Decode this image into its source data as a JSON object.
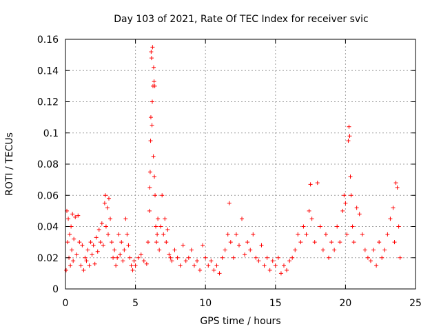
{
  "chart_data": {
    "type": "scatter",
    "title": "Day 103 of 2021, Rate Of TEC Index for receiver svic",
    "xlabel": "GPS time / hours",
    "ylabel": "ROTI / TECUs",
    "xlim": [
      0,
      25
    ],
    "ylim": [
      0,
      0.16
    ],
    "grid": true,
    "legend": "none",
    "marker": "plus",
    "marker_color": "#ff0000",
    "x_ticks": [
      0,
      5,
      10,
      15,
      20,
      25
    ],
    "x_tick_labels": [
      "0",
      "5",
      "10",
      "15",
      "20",
      "25"
    ],
    "y_ticks": [
      0,
      0.02,
      0.04,
      0.06,
      0.08,
      0.1,
      0.12,
      0.14,
      0.16
    ],
    "y_tick_labels": [
      "0",
      "0.02",
      "0.04",
      "0.06",
      "0.08",
      "0.1",
      "0.12",
      "0.14",
      "0.16"
    ],
    "points": [
      [
        0.05,
        0.012
      ],
      [
        0.1,
        0.05
      ],
      [
        0.15,
        0.03
      ],
      [
        0.2,
        0.045
      ],
      [
        0.25,
        0.02
      ],
      [
        0.3,
        0.035
      ],
      [
        0.35,
        0.015
      ],
      [
        0.4,
        0.04
      ],
      [
        0.45,
        0.025
      ],
      [
        0.5,
        0.048
      ],
      [
        0.55,
        0.018
      ],
      [
        0.6,
        0.032
      ],
      [
        0.7,
        0.046
      ],
      [
        0.8,
        0.022
      ],
      [
        0.9,
        0.047
      ],
      [
        1.0,
        0.03
      ],
      [
        1.1,
        0.015
      ],
      [
        1.2,
        0.028
      ],
      [
        1.3,
        0.012
      ],
      [
        1.4,
        0.02
      ],
      [
        1.5,
        0.018
      ],
      [
        1.6,
        0.025
      ],
      [
        1.7,
        0.015
      ],
      [
        1.8,
        0.03
      ],
      [
        1.9,
        0.022
      ],
      [
        2.0,
        0.028
      ],
      [
        2.1,
        0.016
      ],
      [
        2.2,
        0.033
      ],
      [
        2.3,
        0.024
      ],
      [
        2.4,
        0.038
      ],
      [
        2.5,
        0.03
      ],
      [
        2.6,
        0.042
      ],
      [
        2.7,
        0.028
      ],
      [
        2.8,
        0.055
      ],
      [
        2.85,
        0.06
      ],
      [
        2.9,
        0.04
      ],
      [
        3.0,
        0.052
      ],
      [
        3.05,
        0.035
      ],
      [
        3.1,
        0.058
      ],
      [
        3.2,
        0.045
      ],
      [
        3.3,
        0.03
      ],
      [
        3.4,
        0.02
      ],
      [
        3.5,
        0.025
      ],
      [
        3.6,
        0.015
      ],
      [
        3.7,
        0.02
      ],
      [
        3.8,
        0.035
      ],
      [
        3.9,
        0.022
      ],
      [
        4.0,
        0.03
      ],
      [
        4.1,
        0.018
      ],
      [
        4.2,
        0.025
      ],
      [
        4.3,
        0.045
      ],
      [
        4.4,
        0.035
      ],
      [
        4.5,
        0.028
      ],
      [
        4.6,
        0.02
      ],
      [
        4.7,
        0.015
      ],
      [
        4.8,
        0.012
      ],
      [
        4.9,
        0.018
      ],
      [
        5.0,
        0.015
      ],
      [
        5.2,
        0.02
      ],
      [
        5.4,
        0.022
      ],
      [
        5.6,
        0.018
      ],
      [
        5.8,
        0.016
      ],
      [
        5.9,
        0.03
      ],
      [
        6.0,
        0.05
      ],
      [
        6.02,
        0.065
      ],
      [
        6.05,
        0.075
      ],
      [
        6.08,
        0.095
      ],
      [
        6.1,
        0.11
      ],
      [
        6.12,
        0.152
      ],
      [
        6.15,
        0.148
      ],
      [
        6.18,
        0.105
      ],
      [
        6.2,
        0.12
      ],
      [
        6.22,
        0.155
      ],
      [
        6.25,
        0.13
      ],
      [
        6.28,
        0.085
      ],
      [
        6.3,
        0.142
      ],
      [
        6.33,
        0.133
      ],
      [
        6.35,
        0.072
      ],
      [
        6.38,
        0.13
      ],
      [
        6.4,
        0.06
      ],
      [
        6.45,
        0.04
      ],
      [
        6.5,
        0.03
      ],
      [
        6.55,
        0.035
      ],
      [
        6.6,
        0.045
      ],
      [
        6.7,
        0.025
      ],
      [
        6.8,
        0.04
      ],
      [
        6.9,
        0.06
      ],
      [
        7.0,
        0.035
      ],
      [
        7.1,
        0.045
      ],
      [
        7.2,
        0.03
      ],
      [
        7.3,
        0.038
      ],
      [
        7.4,
        0.022
      ],
      [
        7.5,
        0.02
      ],
      [
        7.6,
        0.018
      ],
      [
        7.8,
        0.025
      ],
      [
        8.0,
        0.02
      ],
      [
        8.2,
        0.015
      ],
      [
        8.4,
        0.028
      ],
      [
        8.6,
        0.018
      ],
      [
        8.8,
        0.02
      ],
      [
        9.0,
        0.025
      ],
      [
        9.2,
        0.015
      ],
      [
        9.4,
        0.018
      ],
      [
        9.6,
        0.012
      ],
      [
        9.8,
        0.028
      ],
      [
        10.0,
        0.02
      ],
      [
        10.2,
        0.015
      ],
      [
        10.4,
        0.018
      ],
      [
        10.6,
        0.012
      ],
      [
        10.8,
        0.015
      ],
      [
        11.0,
        0.01
      ],
      [
        11.2,
        0.02
      ],
      [
        11.4,
        0.025
      ],
      [
        11.6,
        0.035
      ],
      [
        11.7,
        0.055
      ],
      [
        11.8,
        0.03
      ],
      [
        12.0,
        0.02
      ],
      [
        12.2,
        0.035
      ],
      [
        12.4,
        0.028
      ],
      [
        12.6,
        0.045
      ],
      [
        12.8,
        0.022
      ],
      [
        13.0,
        0.03
      ],
      [
        13.2,
        0.025
      ],
      [
        13.4,
        0.035
      ],
      [
        13.6,
        0.02
      ],
      [
        13.8,
        0.018
      ],
      [
        14.0,
        0.028
      ],
      [
        14.2,
        0.015
      ],
      [
        14.4,
        0.02
      ],
      [
        14.6,
        0.012
      ],
      [
        14.8,
        0.018
      ],
      [
        15.0,
        0.015
      ],
      [
        15.2,
        0.02
      ],
      [
        15.4,
        0.01
      ],
      [
        15.6,
        0.015
      ],
      [
        15.8,
        0.012
      ],
      [
        16.0,
        0.018
      ],
      [
        16.2,
        0.02
      ],
      [
        16.4,
        0.025
      ],
      [
        16.6,
        0.035
      ],
      [
        16.8,
        0.03
      ],
      [
        17.0,
        0.04
      ],
      [
        17.2,
        0.035
      ],
      [
        17.4,
        0.05
      ],
      [
        17.5,
        0.067
      ],
      [
        17.6,
        0.045
      ],
      [
        17.8,
        0.03
      ],
      [
        18.0,
        0.068
      ],
      [
        18.2,
        0.04
      ],
      [
        18.4,
        0.025
      ],
      [
        18.6,
        0.035
      ],
      [
        18.8,
        0.02
      ],
      [
        19.0,
        0.03
      ],
      [
        19.2,
        0.025
      ],
      [
        19.4,
        0.04
      ],
      [
        19.6,
        0.03
      ],
      [
        19.8,
        0.05
      ],
      [
        19.9,
        0.06
      ],
      [
        20.0,
        0.055
      ],
      [
        20.1,
        0.035
      ],
      [
        20.2,
        0.095
      ],
      [
        20.25,
        0.104
      ],
      [
        20.3,
        0.098
      ],
      [
        20.35,
        0.072
      ],
      [
        20.4,
        0.06
      ],
      [
        20.5,
        0.04
      ],
      [
        20.6,
        0.03
      ],
      [
        20.8,
        0.052
      ],
      [
        21.0,
        0.048
      ],
      [
        21.2,
        0.035
      ],
      [
        21.4,
        0.025
      ],
      [
        21.6,
        0.02
      ],
      [
        21.8,
        0.018
      ],
      [
        22.0,
        0.025
      ],
      [
        22.2,
        0.015
      ],
      [
        22.4,
        0.03
      ],
      [
        22.6,
        0.02
      ],
      [
        22.8,
        0.025
      ],
      [
        23.0,
        0.035
      ],
      [
        23.2,
        0.045
      ],
      [
        23.4,
        0.052
      ],
      [
        23.5,
        0.03
      ],
      [
        23.6,
        0.068
      ],
      [
        23.7,
        0.065
      ],
      [
        23.8,
        0.04
      ],
      [
        23.9,
        0.02
      ]
    ]
  }
}
